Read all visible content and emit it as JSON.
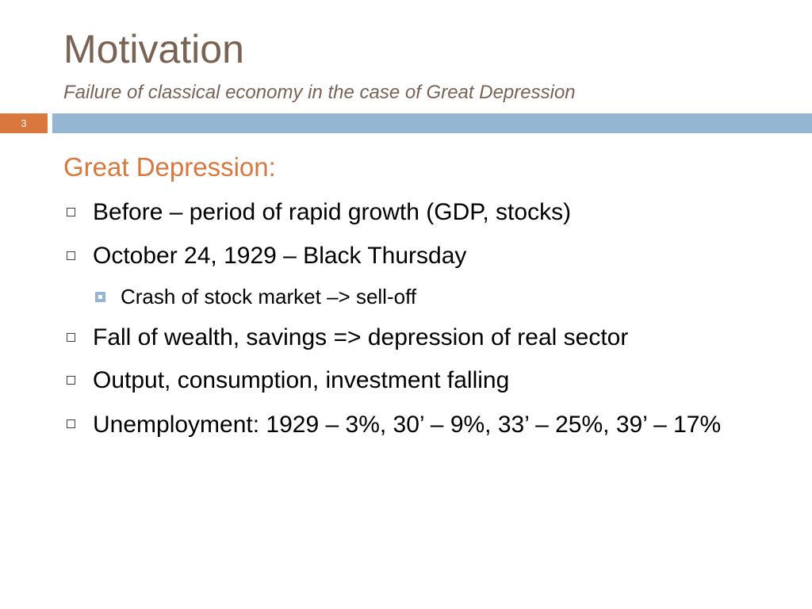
{
  "slide": {
    "title": "Motivation",
    "subtitle": "Failure of classical economy in the case of Great Depression",
    "slide_number": "3",
    "section_heading": "Great Depression:",
    "bullets": [
      {
        "text": "Before – period of rapid growth (GDP, stocks)"
      },
      {
        "text": "October 24, 1929 – Black Thursday"
      },
      {
        "text": "Fall of wealth, savings => depression of real sector"
      },
      {
        "text": "Output, consumption, investment falling"
      },
      {
        "text": "Unemployment: 1929 – 3%, 30’ – 9%, 33’ – 25%, 39’ – 17%"
      }
    ],
    "sub_bullets": [
      {
        "text": "Crash of stock market –> sell-off"
      }
    ]
  },
  "colors": {
    "title": "#7a6354",
    "accent_orange": "#d9773f",
    "accent_blue": "#94b6d2"
  },
  "icons": {
    "bullet": "hollow-square-icon",
    "sub_bullet": "filled-square-bullet-icon"
  }
}
